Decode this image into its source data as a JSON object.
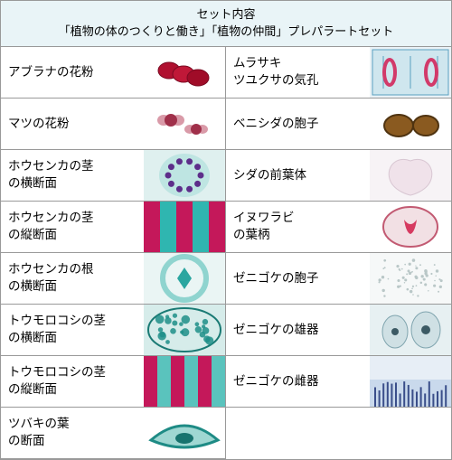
{
  "header": {
    "line1": "セット内容",
    "line2": "「植物の体のつくりと働き」「植物の仲間」プレパラートセット"
  },
  "rows": [
    {
      "left": {
        "label": "アブラナの花粉",
        "thumb": {
          "bg": "#ffffff",
          "kind": "blobs",
          "fills": [
            "#b01030",
            "#c01838",
            "#a00c28"
          ],
          "stroke": "#7a0a22"
        }
      },
      "right": {
        "label": "ムラサキ\nツユクサの気孔",
        "thumb": {
          "bg": "#eaf2f6",
          "kind": "stomata",
          "cell": "#cfe6ee",
          "guard": "#d23a6a",
          "border": "#5aa0c0"
        }
      }
    },
    {
      "left": {
        "label": "マツの花粉",
        "thumb": {
          "bg": "#ffffff",
          "kind": "wingpollen",
          "body": "#a0304a",
          "wing": "#d99aa8"
        }
      },
      "right": {
        "label": "ベニシダの胞子",
        "thumb": {
          "bg": "#ffffff",
          "kind": "seeds",
          "fill": "#8a5a20",
          "edge": "#4f3310"
        }
      }
    },
    {
      "left": {
        "label": "ホウセンカの茎\nの横断面",
        "thumb": {
          "bg": "#dff0ef",
          "kind": "ring",
          "dots": "#5d2e8a",
          "ring": "#9edad6"
        }
      },
      "right": {
        "label": "シダの前葉体",
        "thumb": {
          "bg": "#f7f3f6",
          "kind": "heart",
          "fill": "#f0e2ea",
          "edge": "#d8c6d2"
        }
      }
    },
    {
      "left": {
        "label": "ホウセンカの茎\nの縦断面",
        "thumb": {
          "bg": "#e8f3f2",
          "kind": "vstripes",
          "colors": [
            "#c4185a",
            "#2fb6b0",
            "#c4185a",
            "#2fb6b0",
            "#c4185a"
          ]
        }
      },
      "right": {
        "label": "イヌワラビ\nの葉柄",
        "thumb": {
          "bg": "#ffffff",
          "kind": "oval",
          "fill": "#f2e0e4",
          "edge": "#c25a72",
          "core": "#d63a60"
        }
      }
    },
    {
      "left": {
        "label": "ホウセンカの根\nの横断面",
        "thumb": {
          "bg": "#eaf5f4",
          "kind": "crossroot",
          "ring": "#8fd4cf",
          "core": "#2aa6a0"
        }
      },
      "right": {
        "label": "ゼニゴケの胞子",
        "thumb": {
          "bg": "#f6f8f8",
          "kind": "speckle",
          "dot": "#b9c7c7"
        }
      }
    },
    {
      "left": {
        "label": "トウモロコシの茎\nの横断面",
        "thumb": {
          "bg": "#d6ecea",
          "kind": "bundles",
          "dot": "#1f8f88",
          "rim": "#1a7a74"
        }
      },
      "right": {
        "label": "ゼニゴケの雄器",
        "thumb": {
          "bg": "#e7f0f2",
          "kind": "pods",
          "fill": "#cfe0e4",
          "edge": "#7fa4ae",
          "hole": "#3c5a64"
        }
      }
    },
    {
      "left": {
        "label": "トウモロコシの茎\nの縦断面",
        "thumb": {
          "bg": "#eef6f5",
          "kind": "vstripes",
          "colors": [
            "#c4185a",
            "#5ac3bd",
            "#c4185a",
            "#5ac3bd",
            "#c4185a",
            "#5ac3bd"
          ]
        }
      },
      "right": {
        "label": "ゼニゴケの雌器",
        "thumb": {
          "bg": "#e7eef6",
          "kind": "fringe",
          "base": "#c9d9ec",
          "dark": "#3a4e8a"
        }
      }
    },
    {
      "left": {
        "label": "ツバキの葉\nの断面",
        "thumb": {
          "bg": "#ffffff",
          "kind": "leafxs",
          "outer": "#1e8b85",
          "inner": "#9fd7d2",
          "mid": "#17736e"
        }
      },
      "right": null
    }
  ]
}
